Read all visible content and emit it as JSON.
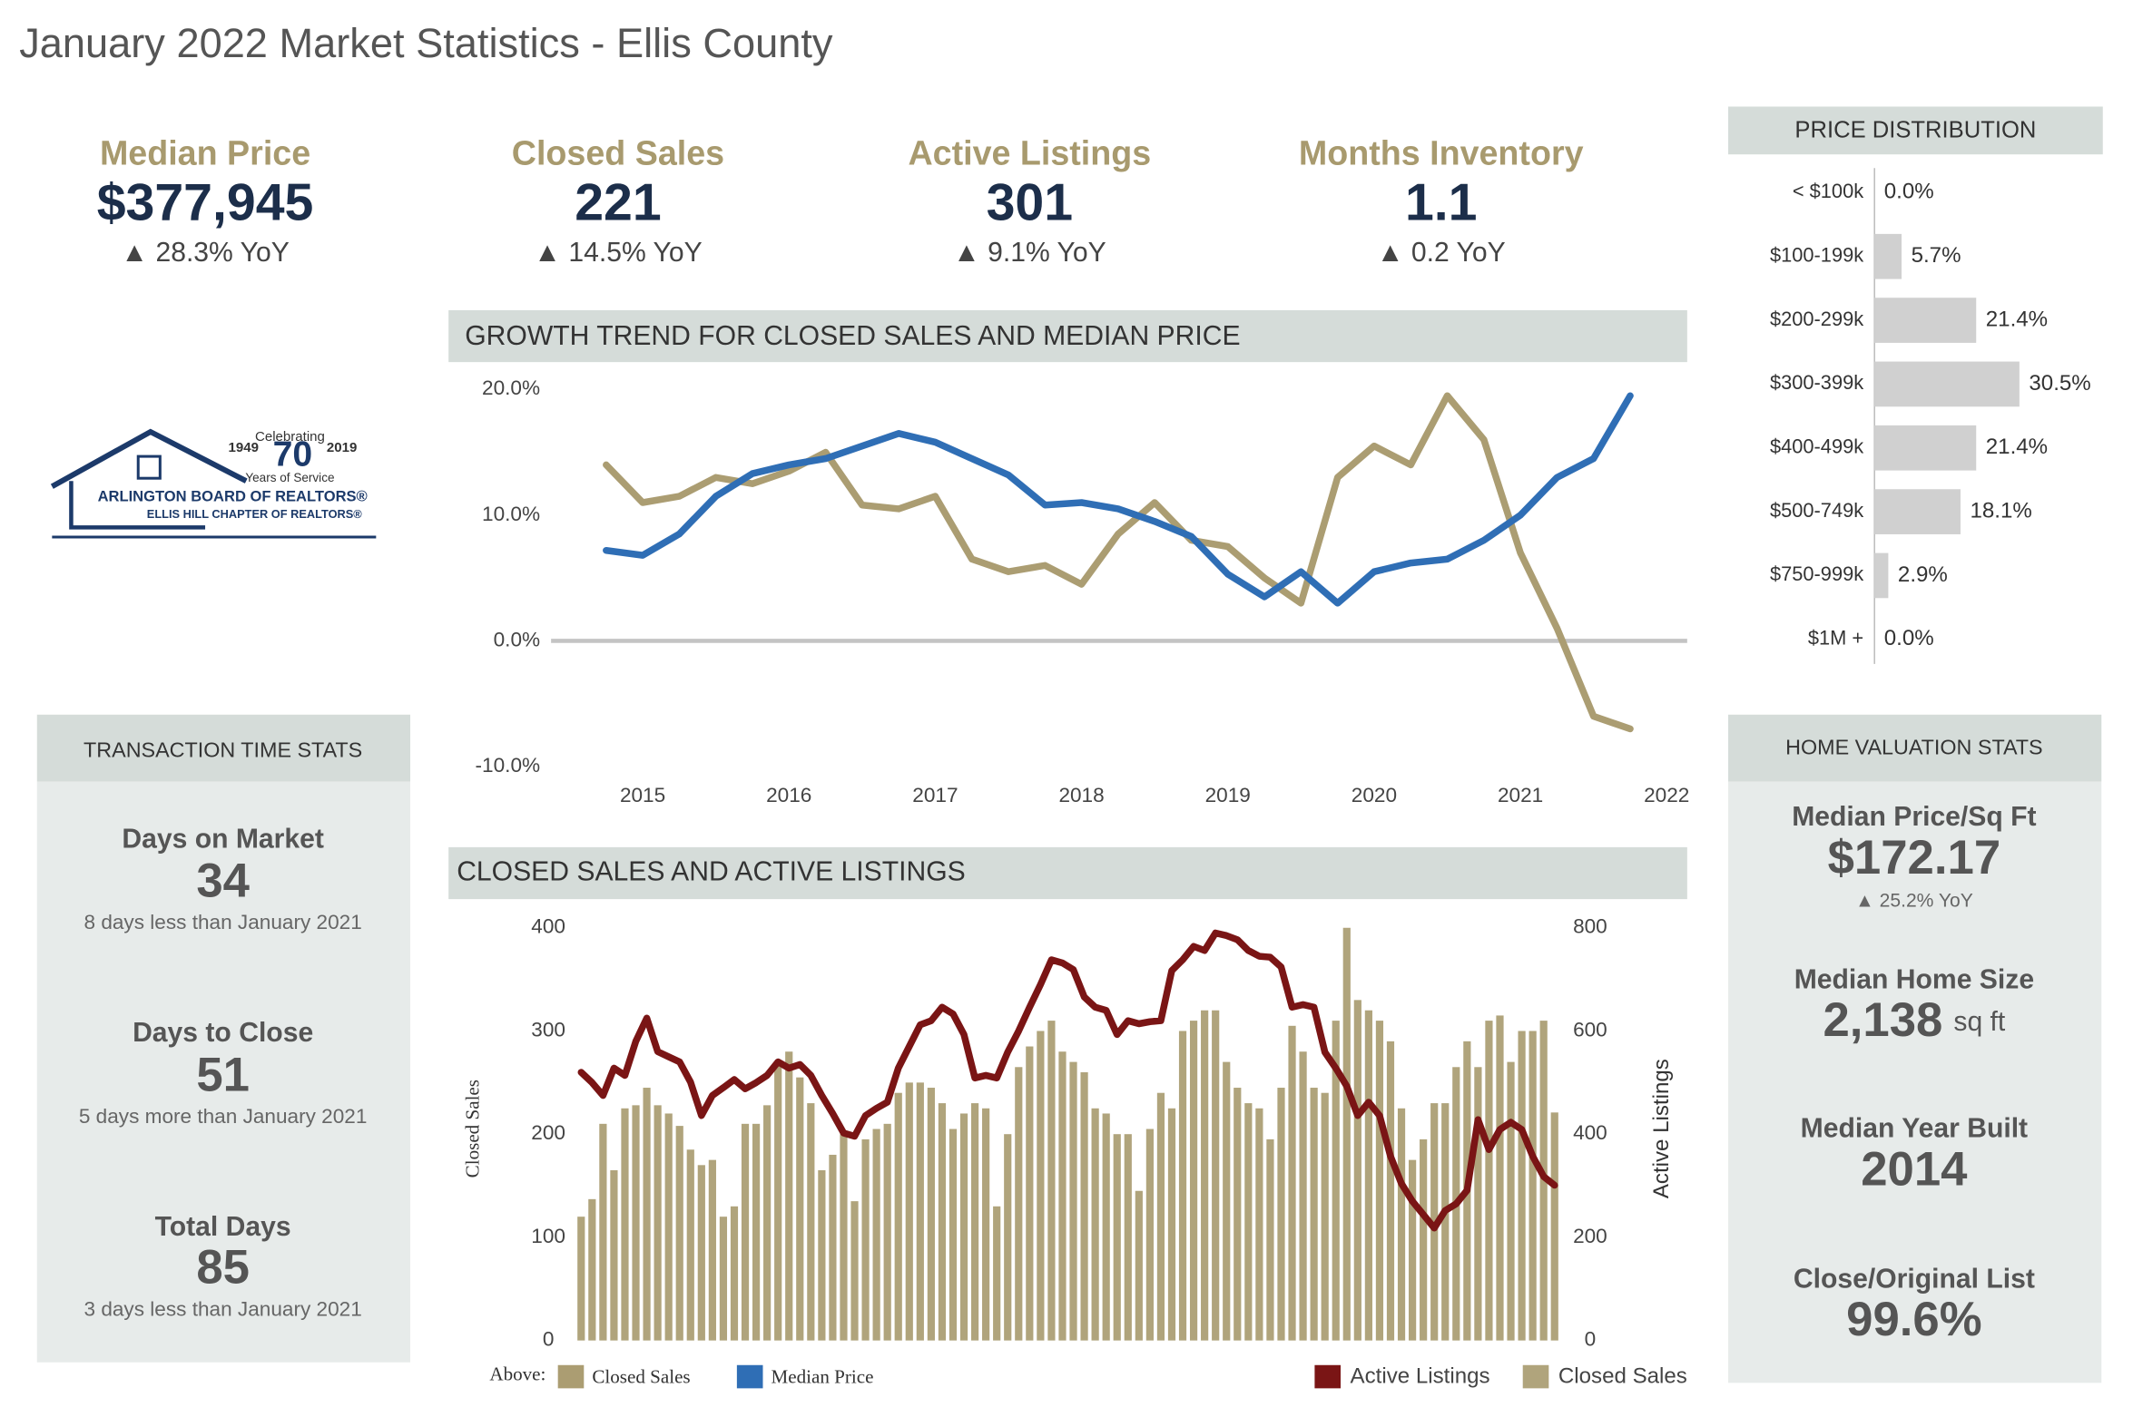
{
  "title": "January 2022 Market Statistics - Ellis County",
  "kpis": [
    {
      "label": "Median Price",
      "value": "$377,945",
      "change": "▲ 28.3% YoY"
    },
    {
      "label": "Closed Sales",
      "value": "221",
      "change": "▲ 14.5% YoY"
    },
    {
      "label": "Active Listings",
      "value": "301",
      "change": "▲ 9.1% YoY"
    },
    {
      "label": "Months Inventory",
      "value": "1.1",
      "change": "▲ 0.2 YoY"
    }
  ],
  "logo": {
    "celebrating": "Celebrating",
    "start": "1949",
    "years": "70",
    "end": "2019",
    "service": "Years of Service",
    "name": "ARLINGTON BOARD OF REALTORS®",
    "chapter": "ELLIS HILL CHAPTER OF REALTORS®"
  },
  "transaction_stats": {
    "title": "TRANSACTION TIME STATS",
    "items": [
      {
        "label": "Days on Market",
        "value": "34",
        "note": "8 days less than January 2021"
      },
      {
        "label": "Days to Close",
        "value": "51",
        "note": "5 days more than January 2021"
      },
      {
        "label": "Total Days",
        "value": "85",
        "note": "3 days less than January 2021"
      }
    ]
  },
  "valuation_stats": {
    "title": "HOME VALUATION STATS",
    "items": [
      {
        "label": "Median Price/Sq Ft",
        "value": "$172.17",
        "note": "▲ 25.2% YoY"
      },
      {
        "label": "Median Home Size",
        "value": "2,138",
        "unit": "sq ft"
      },
      {
        "label": "Median Year Built",
        "value": "2014"
      },
      {
        "label": "Close/Original List",
        "value": "99.6%"
      }
    ]
  },
  "chart_data": [
    {
      "type": "bar",
      "orientation": "horizontal",
      "title": "PRICE DISTRIBUTION",
      "categories": [
        "< $100k",
        "$100-199k",
        "$200-299k",
        "$300-399k",
        "$400-499k",
        "$500-749k",
        "$750-999k",
        "$1M +"
      ],
      "values": [
        0,
        5.7,
        21.4,
        30.5,
        21.4,
        18.1,
        2.9,
        0
      ],
      "value_labels": [
        "0.0%",
        "5.7%",
        "21.4%",
        "30.5%",
        "21.4%",
        "18.1%",
        "2.9%",
        "0.0%"
      ],
      "color": "#d0d0d0"
    },
    {
      "type": "line",
      "title": "GROWTH TREND FOR CLOSED SALES AND MEDIAN PRICE",
      "legend_title": "Above:",
      "x": [
        2014.75,
        2015,
        2015.25,
        2015.5,
        2015.75,
        2016,
        2016.25,
        2016.5,
        2016.75,
        2017,
        2017.25,
        2017.5,
        2017.75,
        2018,
        2018.25,
        2018.5,
        2018.75,
        2019,
        2019.25,
        2019.5,
        2019.75,
        2020,
        2020.25,
        2020.5,
        2020.75,
        2021,
        2021.25,
        2021.5,
        2021.75
      ],
      "series": [
        {
          "name": "Closed Sales",
          "color": "#ab9d72",
          "values": [
            14,
            11,
            11.5,
            13,
            12.5,
            13.5,
            15,
            10.8,
            10.5,
            11.5,
            6.5,
            5.5,
            6,
            4.5,
            8.5,
            11,
            8,
            7.5,
            5,
            3,
            13,
            15.5,
            14,
            19.5,
            16,
            7,
            1,
            -6,
            -7
          ]
        },
        {
          "name": "Median Price",
          "color": "#2f6eb5",
          "values": [
            7.2,
            6.8,
            8.5,
            11.5,
            13.3,
            14,
            14.5,
            15.5,
            16.5,
            15.8,
            14.5,
            13.2,
            10.8,
            11,
            10.5,
            9.5,
            8.3,
            5.3,
            3.5,
            5.5,
            3.0,
            5.5,
            6.2,
            6.5,
            8,
            10,
            13,
            14.5,
            19.5
          ]
        }
      ],
      "xlim": [
        2014.55,
        2022.05
      ],
      "xticks": [
        2015,
        2016,
        2017,
        2018,
        2019,
        2020,
        2021,
        2022
      ],
      "ylim": [
        -10,
        20
      ],
      "yticks": [
        {
          "value": 20,
          "label": "20.0%"
        },
        {
          "value": 10,
          "label": "10.0%"
        },
        {
          "value": 0,
          "label": "0.0%"
        },
        {
          "value": -10,
          "label": "-10.0%"
        }
      ],
      "grid": false
    },
    {
      "type": "combo",
      "title": "CLOSED SALES AND ACTIVE LISTINGS",
      "y_label": "Closed Sales",
      "y2_label": "Active Listings",
      "legend": "bottom-right",
      "categories": [
        null,
        null,
        null,
        null,
        null,
        null,
        null,
        null,
        null,
        null,
        null,
        null,
        null,
        null,
        null,
        null,
        null,
        null,
        null,
        null,
        null,
        null,
        null,
        null,
        null,
        null,
        null,
        null,
        null,
        null,
        null,
        null,
        null,
        null,
        null,
        null,
        null,
        null,
        null,
        null,
        null,
        null,
        null,
        null,
        null,
        null,
        null,
        null,
        null,
        null,
        null,
        null,
        null,
        null,
        null,
        null,
        null,
        null,
        null,
        null,
        null,
        null,
        null,
        null,
        null,
        null,
        null,
        null,
        null,
        null,
        null,
        null,
        null,
        null,
        null,
        null,
        null,
        null,
        null,
        null,
        null,
        null,
        null,
        null,
        null,
        null,
        null,
        null,
        null,
        null
      ],
      "series": [
        {
          "name": "Active Listings",
          "type": "line",
          "axis": "y2",
          "color": "#7a1515",
          "values": [
            520,
            500,
            475,
            528,
            514,
            580,
            625,
            560,
            550,
            540,
            501,
            436,
            475,
            490,
            506,
            488,
            500,
            514,
            540,
            528,
            535,
            514,
            475,
            440,
            402,
            396,
            436,
            450,
            462,
            528,
            570,
            612,
            620,
            646,
            633,
            593,
            509,
            514,
            509,
            559,
            600,
            646,
            690,
            738,
            732,
            719,
            666,
            646,
            640,
            593,
            620,
            614,
            618,
            620,
            717,
            738,
            764,
            756,
            790,
            785,
            777,
            756,
            745,
            743,
            724,
            646,
            651,
            646,
            559,
            528,
            493,
            436,
            462,
            436,
            357,
            304,
            270,
            244,
            218,
            252,
            265,
            291,
            428,
            370,
            409,
            423,
            409,
            357,
            318,
            301
          ]
        },
        {
          "name": "Closed Sales",
          "type": "bar",
          "axis": "y",
          "color": "#b0a47c",
          "values": [
            120,
            137,
            210,
            165,
            225,
            228,
            245,
            228,
            220,
            208,
            185,
            170,
            175,
            120,
            130,
            210,
            210,
            228,
            270,
            280,
            255,
            230,
            165,
            180,
            200,
            135,
            195,
            205,
            210,
            240,
            250,
            250,
            245,
            230,
            205,
            220,
            230,
            225,
            130,
            200,
            265,
            285,
            300,
            310,
            280,
            270,
            260,
            225,
            220,
            200,
            200,
            145,
            205,
            240,
            225,
            300,
            310,
            320,
            320,
            270,
            245,
            230,
            225,
            195,
            245,
            305,
            280,
            245,
            240,
            310,
            400,
            330,
            320,
            310,
            290,
            225,
            175,
            195,
            230,
            230,
            265,
            290,
            265,
            310,
            315,
            270,
            300,
            300,
            310,
            221
          ]
        }
      ],
      "ylim": [
        0,
        400
      ],
      "yticks": [
        0,
        100,
        200,
        300,
        400
      ],
      "y2lim": [
        0,
        800
      ],
      "y2ticks": [
        0,
        200,
        400,
        600,
        800
      ]
    }
  ]
}
